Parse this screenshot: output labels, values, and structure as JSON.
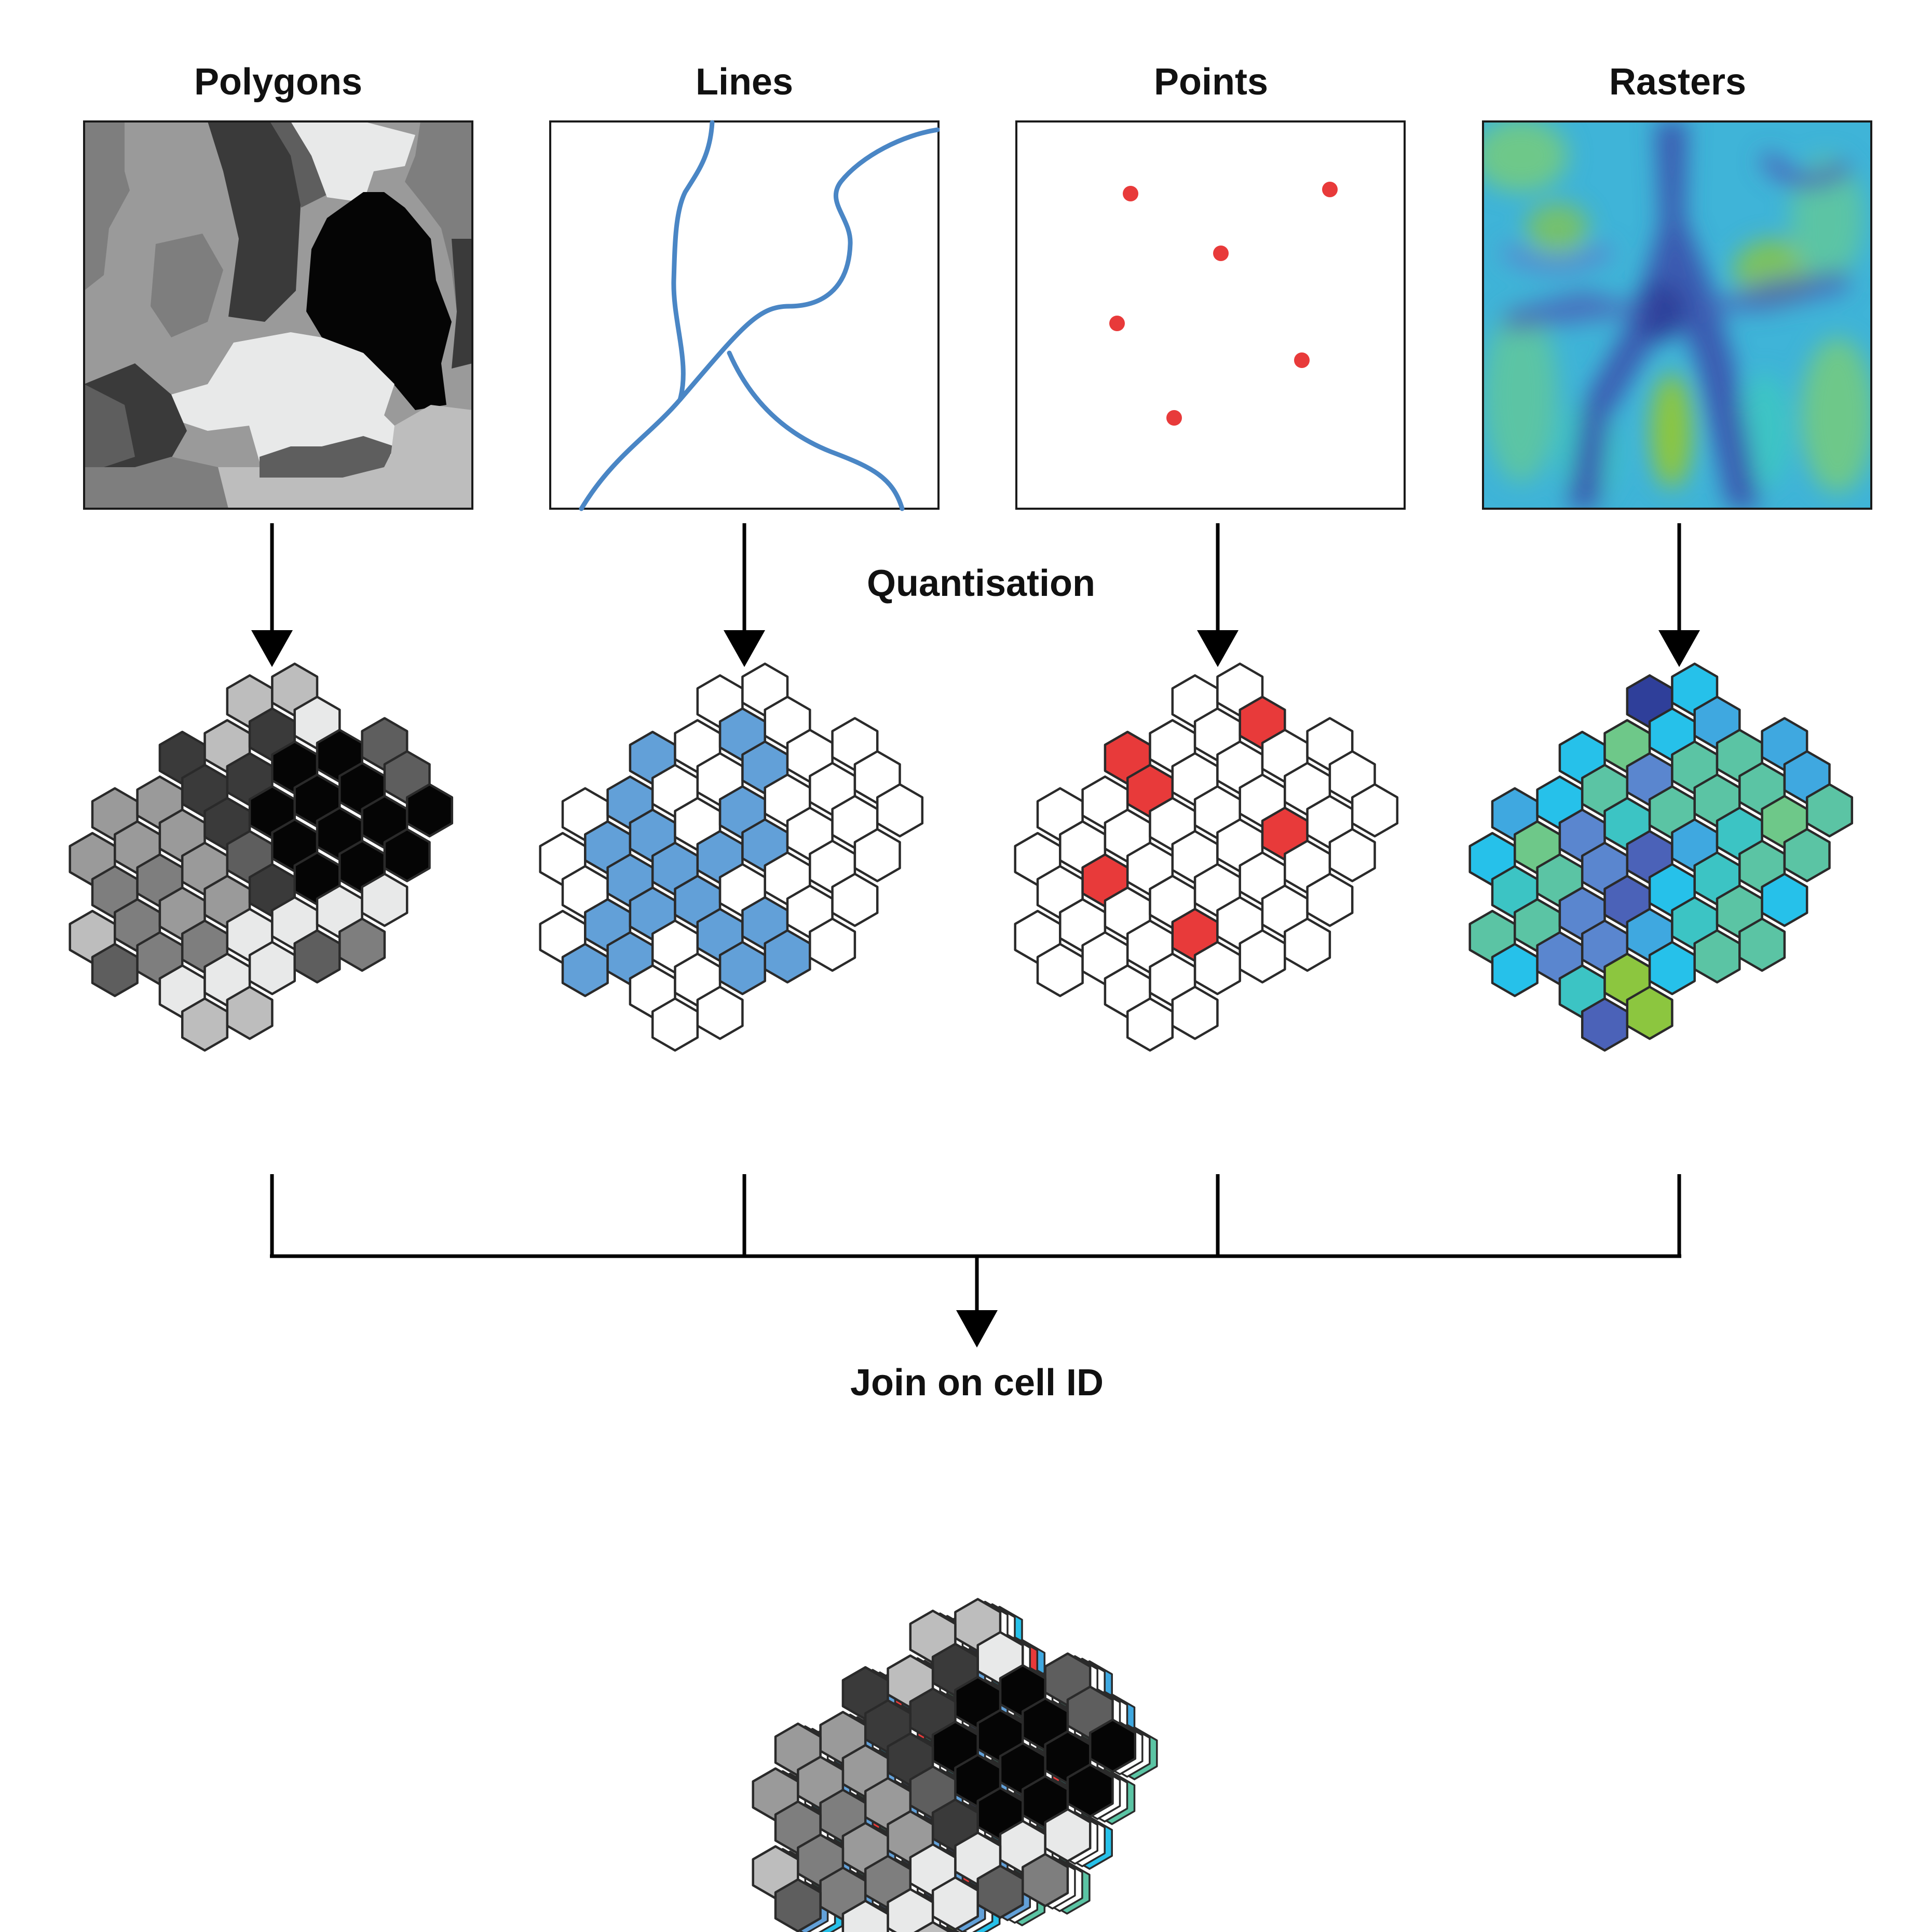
{
  "labels": {
    "polygons": "Polygons",
    "lines": "Lines",
    "points": "Points",
    "rasters": "Rasters",
    "quantisation": "Quantisation",
    "join": "Join on cell ID"
  },
  "colors": {
    "line_blue": "#4a86c5",
    "hex_blue": "#62a0d8",
    "point_red": "#e83a3a",
    "hex_red": "#e83a3a",
    "grey_levels": [
      "#050505",
      "#3a3a3a",
      "#5e5e5e",
      "#7e7e7e",
      "#9a9a9a",
      "#bdbdbd",
      "#e8e9e9"
    ],
    "raster_palette": [
      "#2f3f9a",
      "#4b62b8",
      "#5a86cf",
      "#3fa8e0",
      "#26c1ea",
      "#3cc4c4",
      "#5bc4a4",
      "#6ec889",
      "#8cc63f"
    ]
  },
  "icons": {
    "arrows": "down-arrow-icon",
    "join_connector": "merge-connector-icon"
  }
}
